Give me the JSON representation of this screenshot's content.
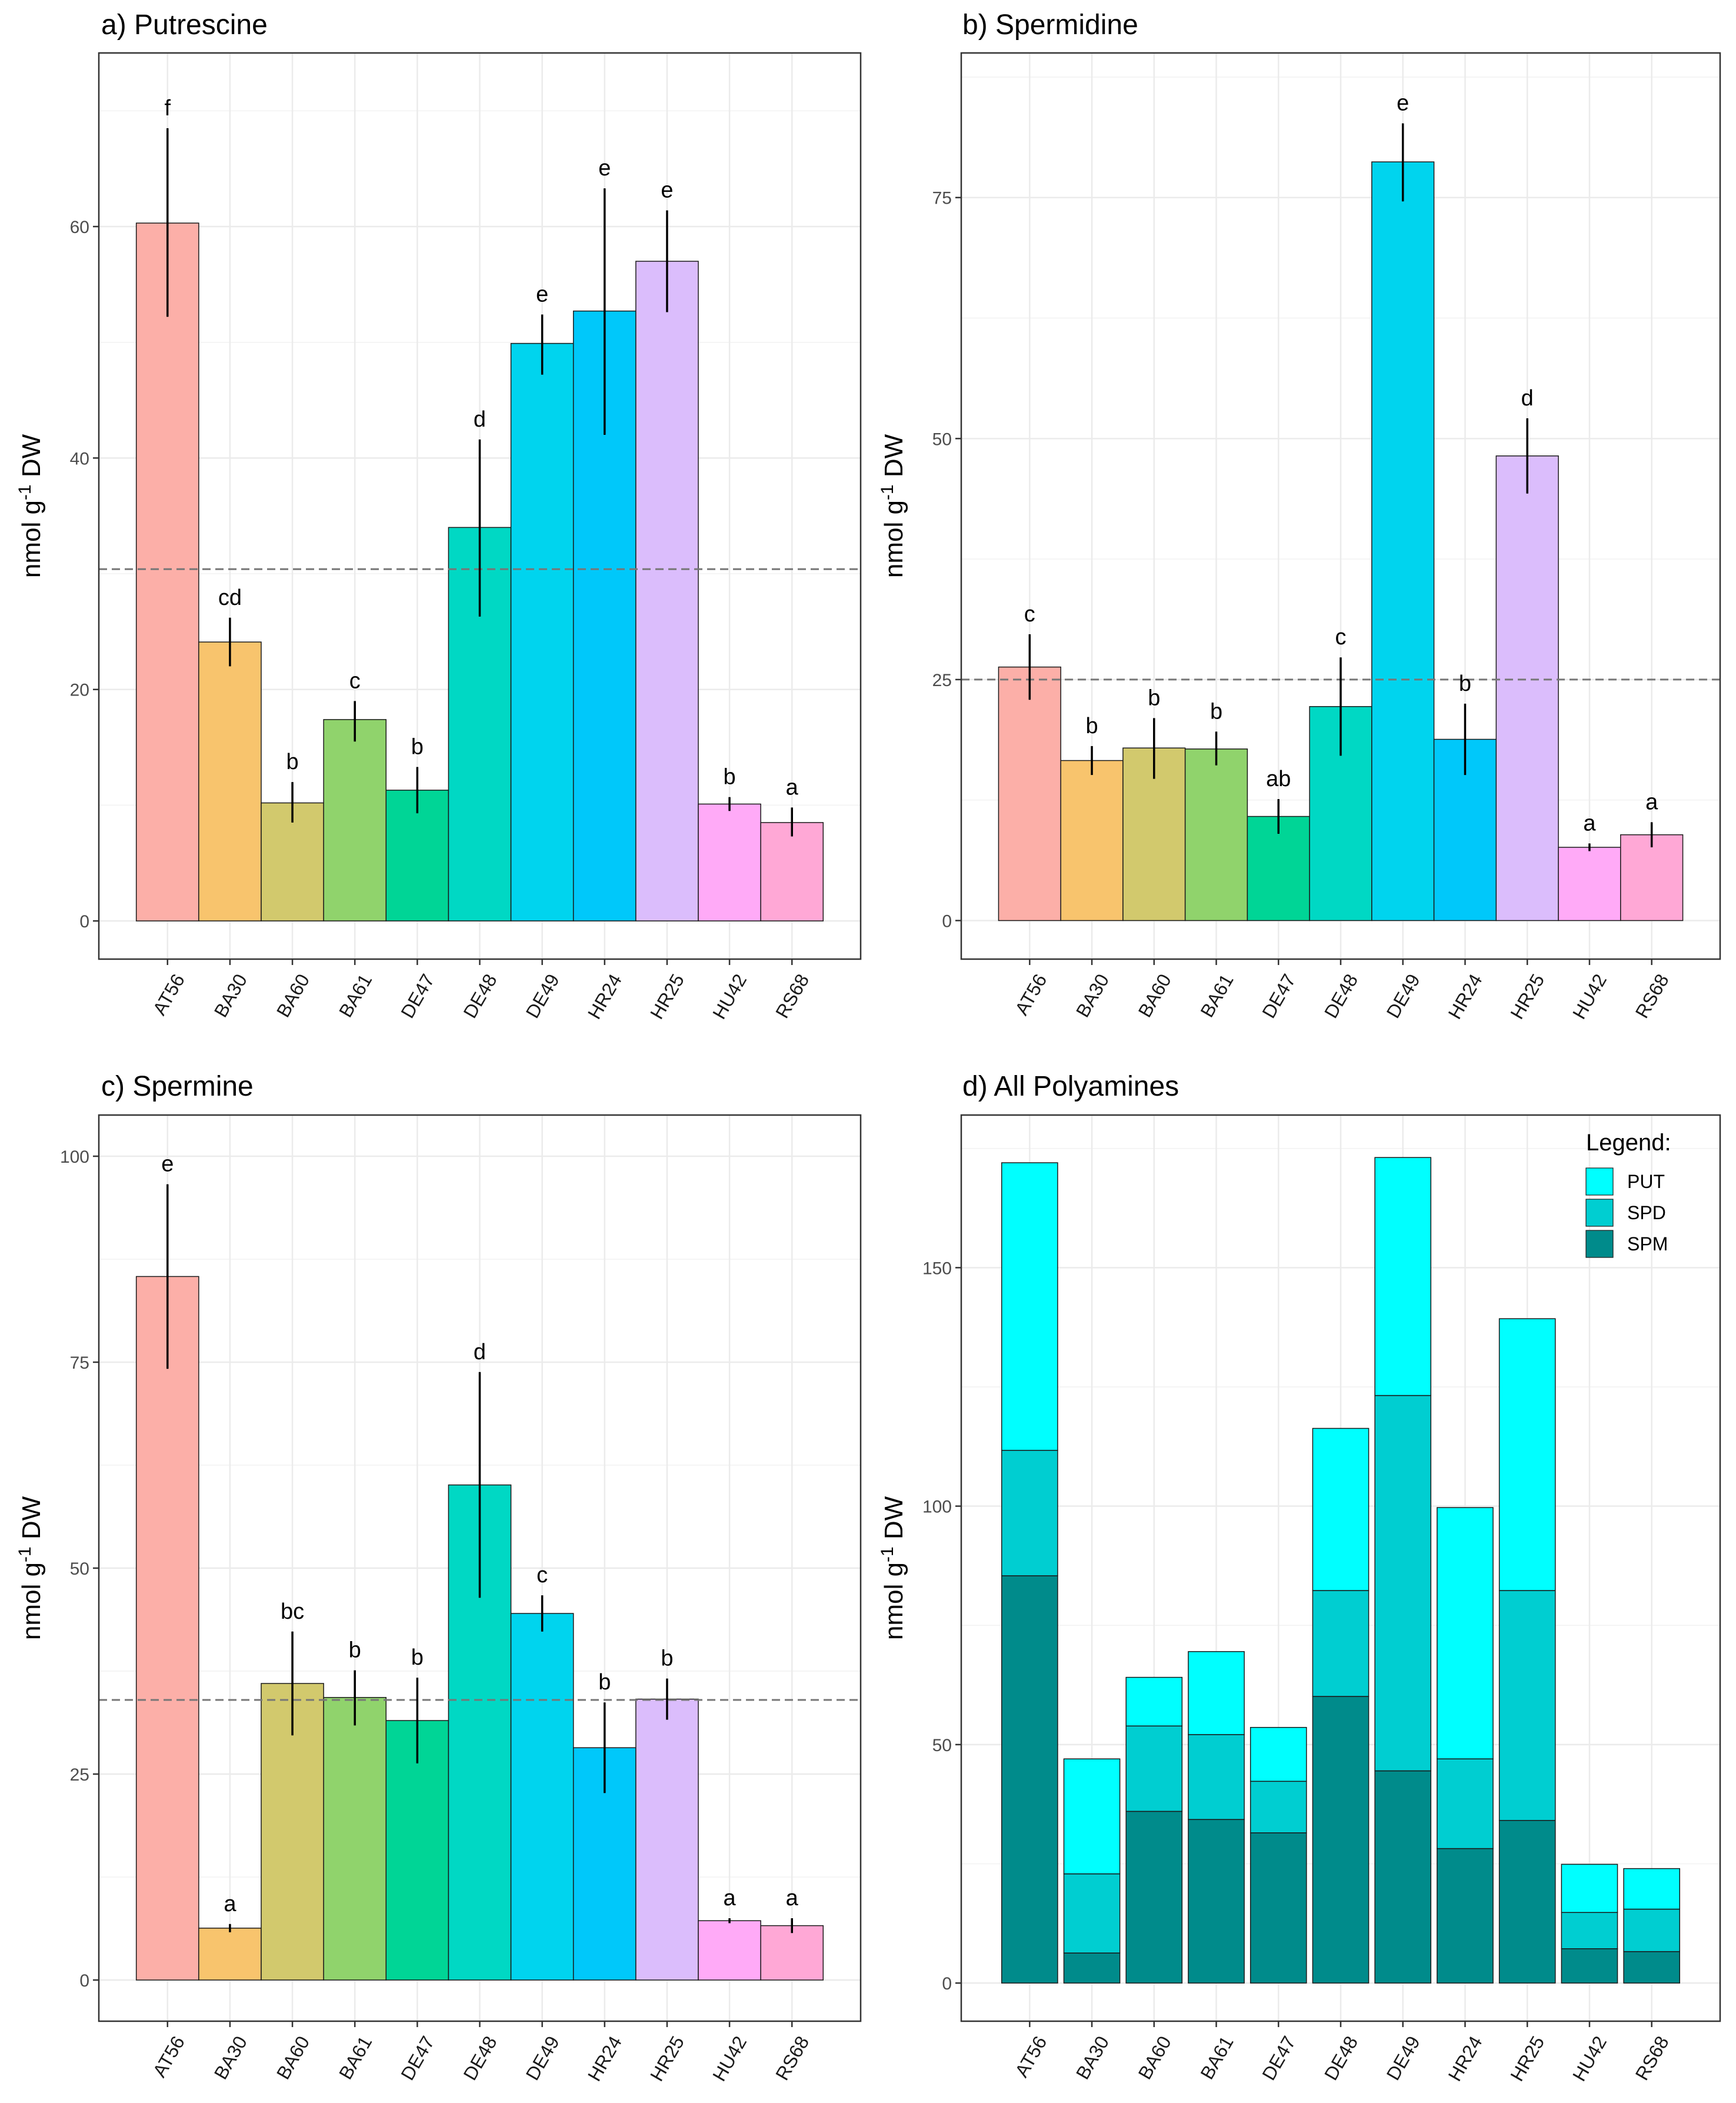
{
  "chart_data": [
    {
      "type": "bar",
      "title": "a) Putrescine",
      "ylabel_prefix": "nmol g",
      "ylabel_sup": "-1",
      "ylabel_suffix": " DW",
      "categories": [
        "AT56",
        "BA30",
        "BA60",
        "BA61",
        "DE47",
        "DE48",
        "DE49",
        "HR24",
        "HR25",
        "HU42",
        "RS68"
      ],
      "values": [
        60.3,
        24.1,
        10.2,
        17.4,
        11.3,
        34.0,
        49.9,
        52.7,
        57.0,
        10.1,
        8.5
      ],
      "err_low": [
        52.2,
        22.0,
        8.5,
        15.5,
        9.3,
        26.3,
        47.2,
        42.0,
        52.6,
        9.5,
        7.3
      ],
      "err_high": [
        68.5,
        26.2,
        12.0,
        19.0,
        13.3,
        41.6,
        52.4,
        63.3,
        61.4,
        10.7,
        9.8
      ],
      "letters": [
        "f",
        "cd",
        "b",
        "c",
        "b",
        "d",
        "e",
        "e",
        "e",
        "b",
        "a"
      ],
      "mean_line": 30.4,
      "ylim": [
        -3.3,
        75
      ],
      "yticks": [
        0,
        20,
        40,
        60
      ],
      "ytick_labels": [
        "0",
        "20",
        "40",
        "60"
      ]
    },
    {
      "type": "bar",
      "title": "b) Spermidine",
      "ylabel_prefix": "nmol g",
      "ylabel_sup": "-1",
      "ylabel_suffix": " DW",
      "categories": [
        "AT56",
        "BA30",
        "BA60",
        "BA61",
        "DE47",
        "DE48",
        "DE49",
        "HR24",
        "HR25",
        "HU42",
        "RS68"
      ],
      "values": [
        26.3,
        16.6,
        17.9,
        17.8,
        10.8,
        22.2,
        78.7,
        18.8,
        48.2,
        7.6,
        8.9
      ],
      "err_low": [
        22.9,
        15.1,
        14.7,
        16.1,
        9.0,
        17.1,
        74.6,
        15.1,
        44.3,
        7.2,
        7.6
      ],
      "err_high": [
        29.7,
        18.1,
        21.0,
        19.6,
        12.6,
        27.3,
        82.7,
        22.5,
        52.1,
        8.0,
        10.2
      ],
      "letters": [
        "c",
        "b",
        "b",
        "b",
        "ab",
        "c",
        "e",
        "b",
        "d",
        "a",
        "a"
      ],
      "mean_line": 25.0,
      "ylim": [
        -4,
        90
      ],
      "yticks": [
        0,
        25,
        50,
        75
      ],
      "ytick_labels": [
        "0",
        "25",
        "50",
        "75"
      ]
    },
    {
      "type": "bar",
      "title": "c) Spermine",
      "ylabel_prefix": "nmol g",
      "ylabel_sup": "-1",
      "ylabel_suffix": " DW",
      "categories": [
        "AT56",
        "BA30",
        "BA60",
        "BA61",
        "DE47",
        "DE48",
        "DE49",
        "HR24",
        "HR25",
        "HU42",
        "RS68"
      ],
      "values": [
        85.4,
        6.3,
        36.0,
        34.3,
        31.5,
        60.1,
        44.5,
        28.2,
        34.1,
        7.2,
        6.6
      ],
      "err_low": [
        74.2,
        5.8,
        29.7,
        30.9,
        26.3,
        46.4,
        42.3,
        22.7,
        31.6,
        6.9,
        5.7
      ],
      "err_high": [
        96.6,
        6.8,
        42.3,
        37.6,
        36.7,
        73.8,
        46.7,
        33.7,
        36.6,
        7.5,
        7.5
      ],
      "letters": [
        "e",
        "a",
        "bc",
        "b",
        "b",
        "d",
        "c",
        "b",
        "b",
        "a",
        "a"
      ],
      "mean_line": 34.0,
      "ylim": [
        -5,
        105
      ],
      "yticks": [
        0,
        25,
        50,
        75,
        100
      ],
      "ytick_labels": [
        "0",
        "25",
        "50",
        "75",
        "100"
      ]
    },
    {
      "type": "stacked_bar",
      "title": "d) All Polyamines",
      "ylabel_prefix": "nmol g",
      "ylabel_sup": "-1",
      "ylabel_suffix": " DW",
      "categories": [
        "AT56",
        "BA30",
        "BA60",
        "BA61",
        "DE47",
        "DE48",
        "DE49",
        "HR24",
        "HR25",
        "HU42",
        "RS68"
      ],
      "series": [
        {
          "name": "SPM",
          "color": "#008b8b",
          "values": [
            85.4,
            6.3,
            36.0,
            34.3,
            31.5,
            60.1,
            44.5,
            28.2,
            34.1,
            7.2,
            6.6
          ]
        },
        {
          "name": "SPD",
          "color": "#00ced1",
          "values": [
            26.3,
            16.6,
            17.9,
            17.8,
            10.8,
            22.2,
            78.7,
            18.8,
            48.2,
            7.6,
            8.9
          ]
        },
        {
          "name": "PUT",
          "color": "#00ffff",
          "values": [
            60.3,
            24.1,
            10.2,
            17.4,
            11.3,
            34.0,
            49.9,
            52.7,
            57.0,
            10.1,
            8.5
          ]
        }
      ],
      "legend_title": "Legend:",
      "legend_items": [
        "PUT",
        "SPD",
        "SPM"
      ],
      "legend_position": "top-right",
      "ylim": [
        -8,
        182
      ],
      "yticks": [
        0,
        50,
        100,
        150
      ],
      "ytick_labels": [
        "0",
        "50",
        "100",
        "150"
      ]
    }
  ],
  "colors": {
    "AT56": "#fcafa8",
    "BA30": "#f8c46d",
    "BA60": "#d2c96d",
    "BA61": "#90d36c",
    "DE47": "#00d596",
    "DE48": "#00d8c4",
    "DE49": "#00d4ee",
    "HR24": "#00c8fa",
    "HR25": "#dbbdfc",
    "HU42": "#ffaaf7",
    "RS68": "#ffa8d6"
  }
}
